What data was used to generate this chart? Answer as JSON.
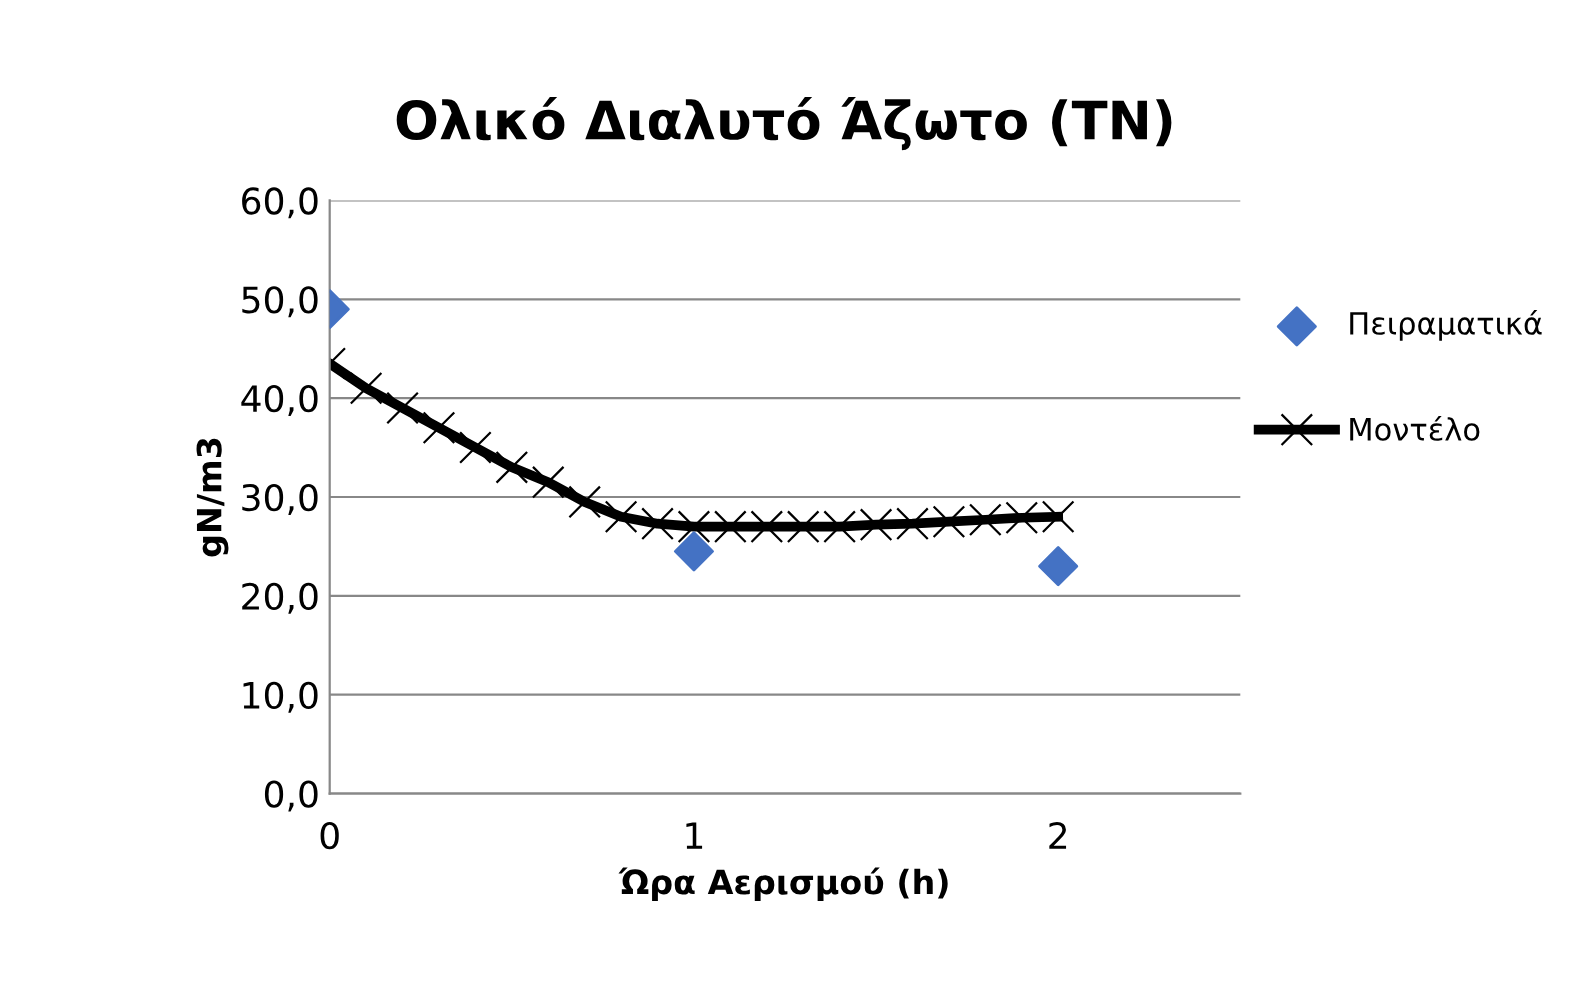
{
  "chart_data": {
    "type": "scatter",
    "title": "Ολικό Διαλυτό Άζωτο (TN)",
    "xlabel": "Ώρα Αερισμού (h)",
    "ylabel": "gN/m3",
    "xlim": [
      0,
      2.5
    ],
    "xticks": [
      0,
      1,
      2
    ],
    "ylim": [
      0,
      60
    ],
    "yticks": [
      {
        "value": 0,
        "label": "0,0"
      },
      {
        "value": 10,
        "label": "10,0"
      },
      {
        "value": 20,
        "label": "20,0"
      },
      {
        "value": 30,
        "label": "30,0"
      },
      {
        "value": 40,
        "label": "40,0"
      },
      {
        "value": 50,
        "label": "50,0"
      },
      {
        "value": 60,
        "label": "60,0"
      }
    ],
    "grid": "y",
    "legend": "right",
    "series": [
      {
        "name": "Πειραματικά",
        "marker": "diamond",
        "color": "#4472c4",
        "x": [
          0,
          1,
          2
        ],
        "values": [
          49,
          24.5,
          23
        ]
      },
      {
        "name": "Μοντέλο",
        "type": "line",
        "marker": "cross",
        "line_style": "solid",
        "color": "#000000",
        "x": [
          0,
          0.1,
          0.2,
          0.3,
          0.4,
          0.5,
          0.6,
          0.7,
          0.8,
          0.9,
          1.0,
          1.1,
          1.2,
          1.3,
          1.4,
          1.5,
          1.6,
          1.7,
          1.8,
          1.9,
          2.0
        ],
        "values": [
          43.5,
          41,
          39,
          37,
          35,
          33,
          31.5,
          29.5,
          28,
          27.3,
          27,
          27,
          27,
          27,
          27,
          27.2,
          27.3,
          27.5,
          27.7,
          27.9,
          28
        ]
      }
    ]
  }
}
